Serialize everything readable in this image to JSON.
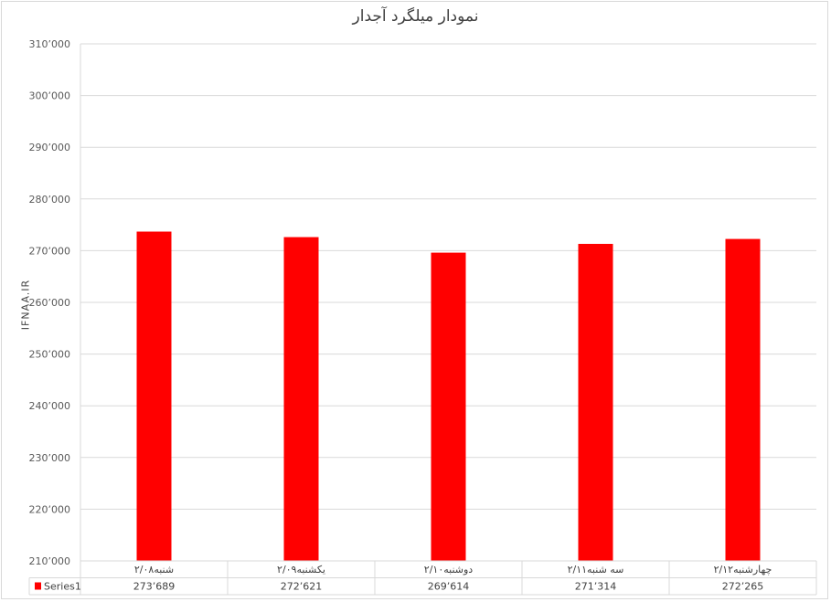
{
  "chart_data": {
    "type": "bar",
    "title": "نمودار میلگرد آجدار",
    "ylabel": "IFNAA.IR",
    "xlabel": "",
    "categories": [
      "شنبه۲/۰۸",
      "یکشنبه۲/۰۹",
      "دوشنبه۲/۱۰",
      "سه شنبه۲/۱۱",
      "چهارشنبه۲/۱۲"
    ],
    "series": [
      {
        "name": "Series1",
        "values": [
          273689,
          272621,
          269614,
          271314,
          272265
        ],
        "color": "#ff0000"
      }
    ],
    "value_labels": [
      "273٬689",
      "272٬621",
      "269٬614",
      "271٬314",
      "272٬265"
    ],
    "ylim": [
      210000,
      310000
    ],
    "yticks": [
      210000,
      220000,
      230000,
      240000,
      250000,
      260000,
      270000,
      280000,
      290000,
      300000,
      310000
    ],
    "ytick_labels": [
      "210٬000",
      "220٬000",
      "230٬000",
      "240٬000",
      "250٬000",
      "260٬000",
      "270٬000",
      "280٬000",
      "290٬000",
      "300٬000",
      "310٬000"
    ],
    "grid": true,
    "legend": "data-table",
    "gridline_color": "#d9d9d9"
  }
}
